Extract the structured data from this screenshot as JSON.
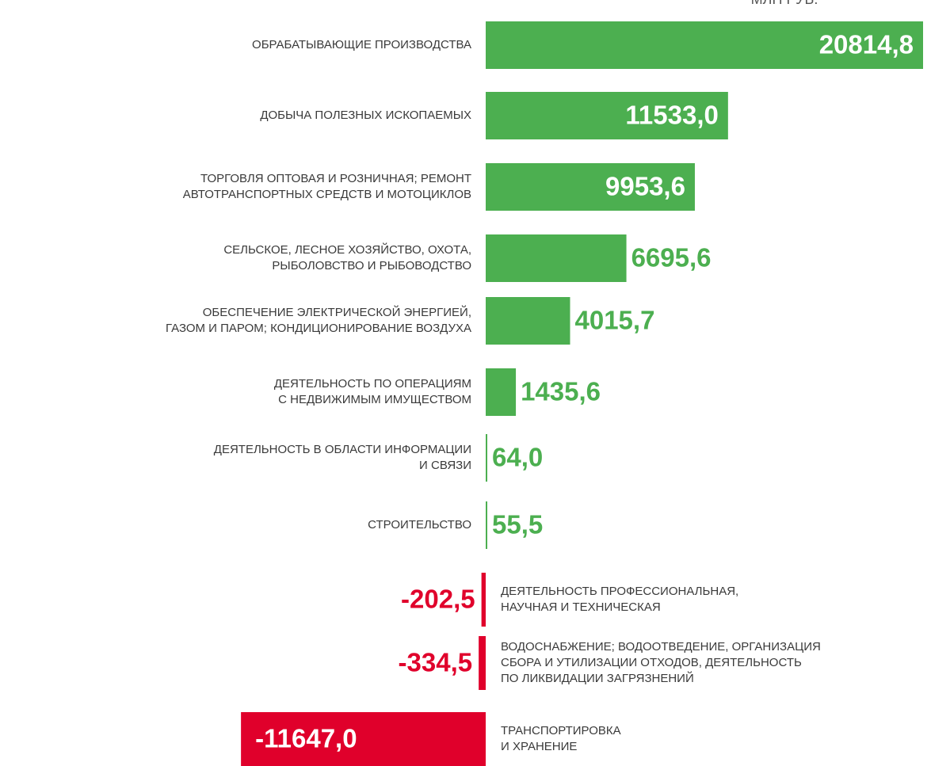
{
  "chart_data": {
    "type": "bar",
    "unit": "МЛН РУБ.",
    "categories": [
      [
        "ОБРАБАТЫВАЮЩИЕ ПРОИЗВОДСТВА"
      ],
      [
        "ДОБЫЧА ПОЛЕЗНЫХ ИСКОПАЕМЫХ"
      ],
      [
        "ТОРГОВЛЯ ОПТОВАЯ И РОЗНИЧНАЯ; РЕМОНТ",
        "АВТОТРАНСПОРТНЫХ СРЕДСТВ И МОТОЦИКЛОВ"
      ],
      [
        "СЕЛЬСКОЕ, ЛЕСНОЕ ХОЗЯЙСТВО, ОХОТА,",
        "РЫБОЛОВСТВО И РЫБОВОДСТВО"
      ],
      [
        "ОБЕСПЕЧЕНИЕ ЭЛЕКТРИЧЕСКОЙ ЭНЕРГИЕЙ,",
        "ГАЗОМ И ПАРОМ; КОНДИЦИОНИРОВАНИЕ ВОЗДУХА"
      ],
      [
        "ДЕЯТЕЛЬНОСТЬ ПО ОПЕРАЦИЯМ",
        "С НЕДВИЖИМЫМ ИМУЩЕСТВОМ"
      ],
      [
        "ДЕЯТЕЛЬНОСТЬ В ОБЛАСТИ ИНФОРМАЦИИ",
        "И СВЯЗИ"
      ],
      [
        "СТРОИТЕЛЬСТВО"
      ],
      [
        "ДЕЯТЕЛЬНОСТЬ ПРОФЕССИОНАЛЬНАЯ,",
        "НАУЧНАЯ И ТЕХНИЧЕСКАЯ"
      ],
      [
        "ВОДОСНАБЖЕНИЕ; ВОДООТВЕДЕНИЕ, ОРГАНИЗАЦИЯ",
        "СБОРА И УТИЛИЗАЦИИ ОТХОДОВ, ДЕЯТЕЛЬНОСТЬ",
        "ПО ЛИКВИДАЦИИ ЗАГРЯЗНЕНИЙ"
      ],
      [
        "ТРАНСПОРТИРОВКА",
        "И ХРАНЕНИЕ"
      ]
    ],
    "values": [
      20814.8,
      11533.0,
      9953.6,
      6695.6,
      4015.7,
      1435.6,
      64.0,
      55.5,
      -202.5,
      -334.5,
      -11647.0
    ],
    "value_labels": [
      "20814,8",
      "11533,0",
      "9953,6",
      "6695,6",
      "4015,7",
      "1435,6",
      "64,0",
      "55,5",
      "-202,5",
      "-334,5",
      "-11647,0"
    ],
    "color": "#4caf50",
    "negative_color": "#e0002b"
  }
}
